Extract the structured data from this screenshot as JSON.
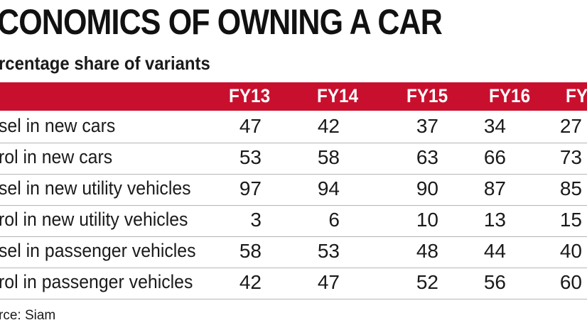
{
  "chart_data": {
    "type": "table",
    "title": "CONOMICS OF OWNING A CAR",
    "subtitle": "rcentage share of variants",
    "columns": [
      "FY13",
      "FY14",
      "FY15",
      "FY16",
      "FY"
    ],
    "rows": [
      {
        "label": "sel in new cars",
        "values": [
          "47",
          "42",
          "37",
          "34",
          "27"
        ]
      },
      {
        "label": "rol in new cars",
        "values": [
          "53",
          "58",
          "63",
          "66",
          "73"
        ]
      },
      {
        "label": "sel in new utility vehicles",
        "values": [
          "97",
          "94",
          "90",
          "87",
          "85"
        ]
      },
      {
        "label": "rol in new utility vehicles",
        "values": [
          "3",
          "6",
          "10",
          "13",
          "15"
        ]
      },
      {
        "label": "sel in passenger vehicles",
        "values": [
          "58",
          "53",
          "48",
          "44",
          "40"
        ]
      },
      {
        "label": "rol in passenger vehicles",
        "values": [
          "42",
          "47",
          "52",
          "56",
          "60"
        ]
      }
    ],
    "source": "rce: Siam"
  },
  "colors": {
    "header_band": "#c8102e",
    "header_text": "#ffffff",
    "rule": "#b5b5b5"
  }
}
